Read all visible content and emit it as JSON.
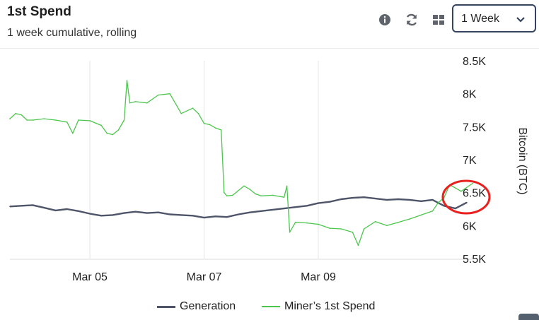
{
  "header": {
    "title": "1st Spend",
    "subtitle": "1 week cumulative, rolling"
  },
  "toolbar": {
    "icons": [
      "info-icon",
      "refresh-icon",
      "grid-icon"
    ],
    "period_selected": "1 Week"
  },
  "colors": {
    "generation": "#4e5569",
    "miner_first_spend": "#4cc64c",
    "annotation": "#e8201e",
    "grid": "#e4e4e4"
  },
  "chart_data": {
    "type": "line",
    "title": "1st Spend",
    "subtitle": "1 week cumulative, rolling",
    "xlabel": "",
    "ylabel": "Bitcoin (BTC)",
    "y_axis_position": "right",
    "ylim": [
      5500,
      8500
    ],
    "yticks": [
      5500,
      6000,
      6500,
      7000,
      7500,
      8000,
      8500
    ],
    "ytick_labels": [
      "5.5K",
      "6K",
      "6.5K",
      "7K",
      "7.5K",
      "8K",
      "8.5K"
    ],
    "x_domain": [
      3.6,
      11.7
    ],
    "xticks": [
      5,
      7,
      9
    ],
    "xtick_labels": [
      "Mar 05",
      "Mar 07",
      "Mar 09"
    ],
    "grid": "vertical",
    "legend_position": "bottom-center",
    "annotation": "red circle around the most recent values",
    "series": [
      {
        "name": "Generation",
        "color": "#4e5569",
        "x": [
          3.6,
          3.8,
          4.0,
          4.2,
          4.4,
          4.6,
          4.8,
          5.0,
          5.2,
          5.4,
          5.6,
          5.8,
          6.0,
          6.2,
          6.4,
          6.6,
          6.8,
          7.0,
          7.2,
          7.4,
          7.6,
          7.8,
          8.0,
          8.2,
          8.4,
          8.6,
          8.8,
          9.0,
          9.2,
          9.4,
          9.6,
          9.8,
          10.0,
          10.2,
          10.4,
          10.6,
          10.8,
          11.0,
          11.2,
          11.4,
          11.6
        ],
        "values": [
          6290,
          6300,
          6310,
          6270,
          6230,
          6250,
          6220,
          6180,
          6150,
          6160,
          6190,
          6210,
          6190,
          6200,
          6170,
          6160,
          6150,
          6120,
          6140,
          6130,
          6170,
          6200,
          6220,
          6240,
          6260,
          6280,
          6300,
          6340,
          6360,
          6400,
          6420,
          6430,
          6410,
          6390,
          6400,
          6390,
          6370,
          6390,
          6300,
          6260,
          6350
        ]
      },
      {
        "name": "Miner’s 1st Spend",
        "color": "#4cc64c",
        "x": [
          3.6,
          3.7,
          3.8,
          3.9,
          4.0,
          4.2,
          4.4,
          4.6,
          4.7,
          4.8,
          5.0,
          5.2,
          5.3,
          5.4,
          5.5,
          5.6,
          5.65,
          5.7,
          5.8,
          6.0,
          6.2,
          6.4,
          6.6,
          6.8,
          6.9,
          7.0,
          7.1,
          7.2,
          7.3,
          7.35,
          7.4,
          7.5,
          7.7,
          7.8,
          7.9,
          8.0,
          8.2,
          8.4,
          8.45,
          8.5,
          8.6,
          8.8,
          9.0,
          9.2,
          9.4,
          9.6,
          9.7,
          9.8,
          10.0,
          10.2,
          10.4,
          10.6,
          10.8,
          11.0,
          11.1,
          11.2,
          11.3,
          11.5,
          11.7
        ],
        "values": [
          7620,
          7700,
          7680,
          7600,
          7600,
          7620,
          7600,
          7570,
          7400,
          7600,
          7590,
          7520,
          7400,
          7380,
          7450,
          7600,
          8200,
          7860,
          7880,
          7860,
          7980,
          8000,
          7700,
          7780,
          7700,
          7550,
          7530,
          7480,
          7450,
          6500,
          6450,
          6460,
          6600,
          6550,
          6480,
          6450,
          6460,
          6430,
          6600,
          5900,
          6050,
          6040,
          6020,
          5960,
          5950,
          5900,
          5700,
          5950,
          6060,
          6000,
          6050,
          6100,
          6160,
          6220,
          6350,
          6420,
          6620,
          6520,
          6640
        ]
      }
    ]
  }
}
